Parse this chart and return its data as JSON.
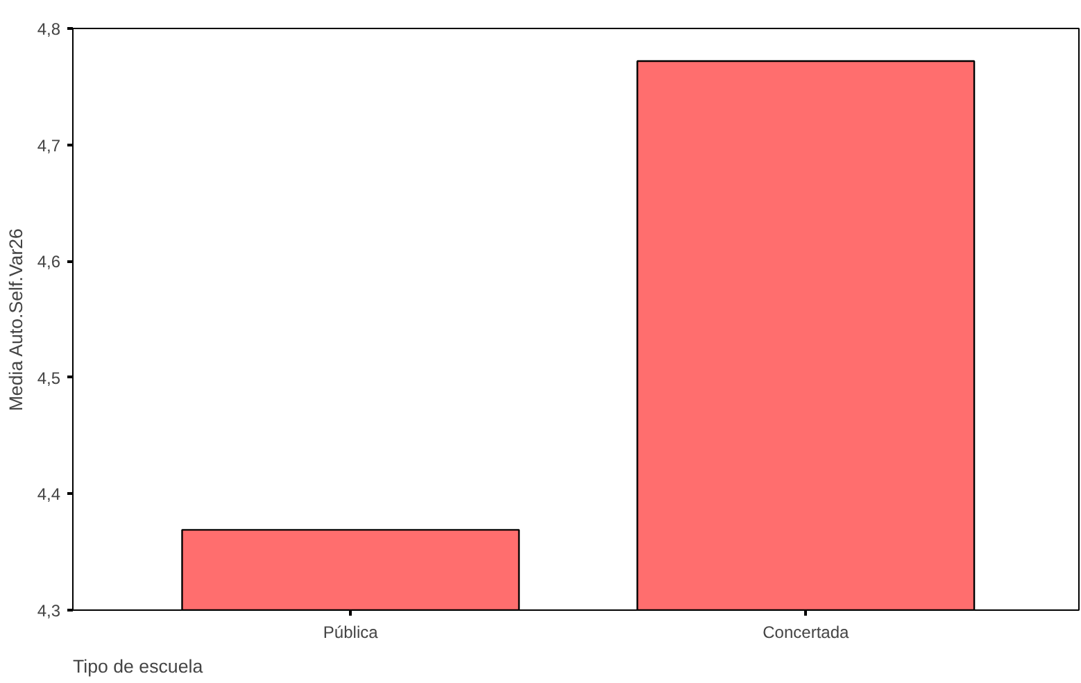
{
  "chart_data": {
    "type": "bar",
    "xlabel": "Tipo de escuela",
    "ylabel": "Media Auto.Self.Var26",
    "categories": [
      "Pública",
      "Concertada"
    ],
    "values": [
      4.369,
      4.772
    ],
    "color": "#ff6e6e",
    "ylim": [
      4.3,
      4.8
    ],
    "yticks": [
      {
        "value": 4.3,
        "label": "4,3"
      },
      {
        "value": 4.4,
        "label": "4,4"
      },
      {
        "value": 4.5,
        "label": "4,5"
      },
      {
        "value": 4.6,
        "label": "4,6"
      },
      {
        "value": 4.7,
        "label": "4,7"
      },
      {
        "value": 4.8,
        "label": "4,8"
      }
    ],
    "grid": false
  }
}
